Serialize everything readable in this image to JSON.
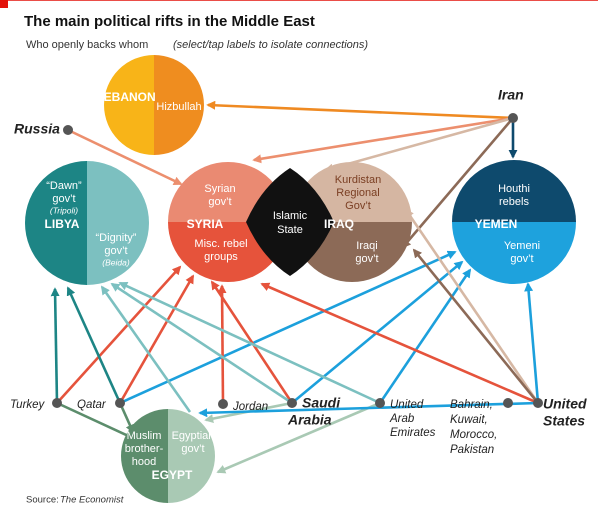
{
  "header": {
    "title": "The main political rifts in the Middle East",
    "subtitle": "Who openly backs whom",
    "hint": "(select/tap labels to isolate connections)"
  },
  "groups": [
    {
      "name": "LEBANON",
      "parts": [
        {
          "lines": [
            "Hizbullah"
          ]
        }
      ]
    },
    {
      "name": "LIBYA",
      "parts": [
        {
          "lines": [
            "“Dawn”",
            "gov’t"
          ],
          "note": "(Tripoli)"
        },
        {
          "lines": [
            "“Dignity”",
            "gov’t"
          ],
          "note": "(Beida)"
        }
      ]
    },
    {
      "name": "SYRIA",
      "parts": [
        {
          "lines": [
            "Syrian",
            "gov’t"
          ]
        },
        {
          "lines": [
            "Misc. rebel",
            "groups"
          ]
        }
      ]
    },
    {
      "name": "IRAQ",
      "parts": [
        {
          "lines": [
            "Kurdistan",
            "Regional",
            "Gov’t"
          ]
        },
        {
          "lines": [
            "Iraqi",
            "gov’t"
          ]
        }
      ]
    },
    {
      "name": "YEMEN",
      "parts": [
        {
          "lines": [
            "Houthi",
            "rebels"
          ]
        },
        {
          "lines": [
            "Yemeni",
            "gov’t"
          ]
        }
      ]
    },
    {
      "name": "EGYPT",
      "parts": [
        {
          "lines": [
            "Muslim",
            "brother-",
            "hood"
          ]
        },
        {
          "lines": [
            "Egyptian",
            "gov’t"
          ]
        }
      ]
    }
  ],
  "islamic_state": {
    "lines": [
      "Islamic",
      "State"
    ]
  },
  "backers": [
    {
      "lines": [
        "Iran"
      ]
    },
    {
      "lines": [
        "Russia"
      ]
    },
    {
      "lines": [
        "Turkey"
      ]
    },
    {
      "lines": [
        "Qatar"
      ]
    },
    {
      "lines": [
        "Jordan"
      ]
    },
    {
      "lines": [
        "Saudi",
        "Arabia"
      ]
    },
    {
      "lines": [
        "United",
        "Arab",
        "Emirates"
      ]
    },
    {
      "lines": [
        "Bahrain,",
        "Kuwait,",
        "Morocco,",
        "Pakistan"
      ]
    },
    {
      "lines": [
        "United",
        "States"
      ]
    }
  ],
  "source": {
    "label": "Source:",
    "name": "The Economist"
  }
}
